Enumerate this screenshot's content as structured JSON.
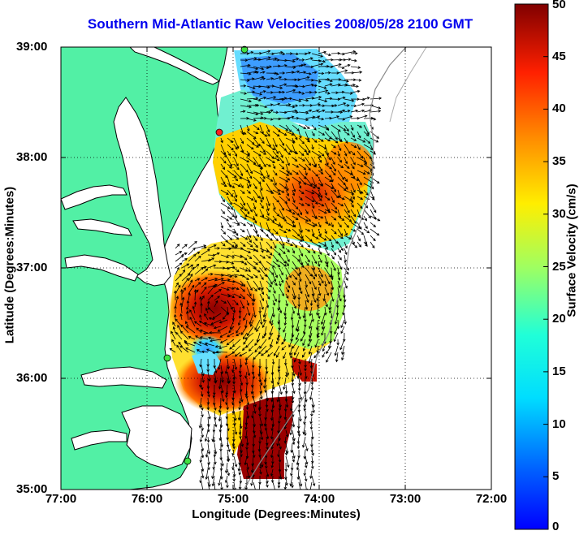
{
  "title": "Southern Mid-Atlantic Raw Velocities 2008/05/28 2100 GMT",
  "xlabel": "Longitude (Degrees:Minutes)",
  "ylabel": "Latitude (Degrees:Minutes)",
  "colorbar": {
    "label": "Surface Velocity (cm/s)",
    "ticks": [
      "0",
      "5",
      "10",
      "15",
      "20",
      "25",
      "30",
      "35",
      "40",
      "45",
      "50"
    ],
    "range": [
      0,
      50
    ],
    "colormap": "jet"
  },
  "map": {
    "xticks": [
      "77:00",
      "76:00",
      "75:00",
      "74:00",
      "73:00",
      "72:00"
    ],
    "yticks": [
      "39:00",
      "38:00",
      "37:00",
      "36:00",
      "35:00"
    ],
    "lon_range": [
      -77,
      -72
    ],
    "lat_range": [
      35,
      39
    ],
    "grid": "dotted",
    "land_color": "#52f0a5",
    "coastline_color": "#000000"
  }
}
